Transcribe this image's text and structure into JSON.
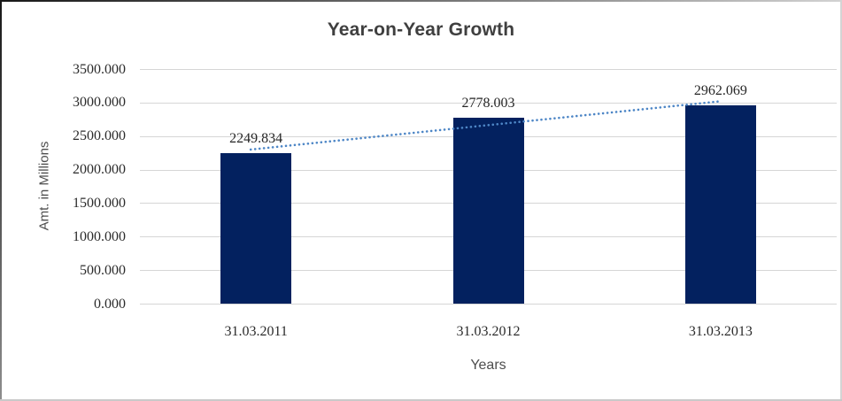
{
  "chart_data": {
    "type": "bar",
    "title": "Year-on-Year Growth",
    "xlabel": "Years",
    "ylabel": "Amt. in Millions",
    "categories": [
      "31.03.2011",
      "31.03.2012",
      "31.03.2013"
    ],
    "values": [
      2249.834,
      2778.003,
      2962.069
    ],
    "value_labels": [
      "2249.834",
      "2778.003",
      "2962.069"
    ],
    "ylim": [
      0,
      3500
    ],
    "ytick_labels": [
      "0.000",
      "500.000",
      "1000.000",
      "1500.000",
      "2000.000",
      "2500.000",
      "3000.000",
      "3500.000"
    ],
    "grid": "horizontal",
    "legend_position": "none",
    "bar_color": "#03215f",
    "gridline_color": "#d6d6d6",
    "trendline": {
      "type": "linear",
      "style": "dotted",
      "color": "#4d86c6"
    }
  }
}
